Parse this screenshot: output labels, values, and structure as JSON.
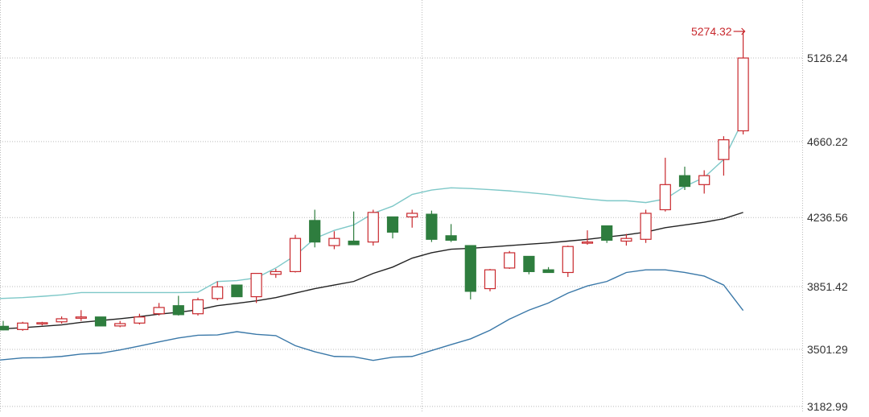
{
  "chart_data": {
    "type": "candlestick",
    "title": "",
    "xlabel": "",
    "ylabel": "",
    "y_ticks": [
      "5126.24",
      "4660.22",
      "4236.56",
      "3851.42",
      "3501.29",
      "3182.99"
    ],
    "y_tick_values": [
      5126.24,
      4660.22,
      4236.56,
      3851.42,
      3501.29,
      3182.99
    ],
    "grid": true,
    "colors": {
      "up": "#c8282d",
      "down": "#2e7d3e",
      "middle_band": "#222222",
      "upper_band": "#7ec8c8",
      "lower_band": "#3a78a8",
      "grid": "#bbbbbb"
    },
    "candles": [
      {
        "o": 3630,
        "h": 3660,
        "l": 3608,
        "c": 3610
      },
      {
        "o": 3612,
        "h": 3655,
        "l": 3605,
        "c": 3648
      },
      {
        "o": 3648,
        "h": 3655,
        "l": 3635,
        "c": 3650
      },
      {
        "o": 3655,
        "h": 3685,
        "l": 3645,
        "c": 3672
      },
      {
        "o": 3675,
        "h": 3720,
        "l": 3660,
        "c": 3682
      },
      {
        "o": 3682,
        "h": 3682,
        "l": 3630,
        "c": 3632
      },
      {
        "o": 3632,
        "h": 3660,
        "l": 3625,
        "c": 3645
      },
      {
        "o": 3648,
        "h": 3700,
        "l": 3640,
        "c": 3682
      },
      {
        "o": 3700,
        "h": 3760,
        "l": 3690,
        "c": 3735
      },
      {
        "o": 3745,
        "h": 3800,
        "l": 3690,
        "c": 3695
      },
      {
        "o": 3700,
        "h": 3790,
        "l": 3690,
        "c": 3778
      },
      {
        "o": 3785,
        "h": 3880,
        "l": 3775,
        "c": 3850
      },
      {
        "o": 3860,
        "h": 3860,
        "l": 3795,
        "c": 3795
      },
      {
        "o": 3795,
        "h": 3920,
        "l": 3760,
        "c": 3925
      },
      {
        "o": 3920,
        "h": 3950,
        "l": 3900,
        "c": 3935
      },
      {
        "o": 3935,
        "h": 4140,
        "l": 3930,
        "c": 4120
      },
      {
        "o": 4220,
        "h": 4280,
        "l": 4070,
        "c": 4100
      },
      {
        "o": 4080,
        "h": 4160,
        "l": 4060,
        "c": 4120
      },
      {
        "o": 4105,
        "h": 4270,
        "l": 4090,
        "c": 4085
      },
      {
        "o": 4100,
        "h": 4280,
        "l": 4080,
        "c": 4265
      },
      {
        "o": 4240,
        "h": 4240,
        "l": 4120,
        "c": 4155
      },
      {
        "o": 4240,
        "h": 4280,
        "l": 4180,
        "c": 4260
      },
      {
        "o": 4255,
        "h": 4275,
        "l": 4100,
        "c": 4115
      },
      {
        "o": 4135,
        "h": 4200,
        "l": 4100,
        "c": 4110
      },
      {
        "o": 4080,
        "h": 4080,
        "l": 3780,
        "c": 3825
      },
      {
        "o": 3840,
        "h": 3950,
        "l": 3825,
        "c": 3945
      },
      {
        "o": 3955,
        "h": 4050,
        "l": 3950,
        "c": 4040
      },
      {
        "o": 4020,
        "h": 4020,
        "l": 3920,
        "c": 3935
      },
      {
        "o": 3945,
        "h": 3960,
        "l": 3930,
        "c": 3930
      },
      {
        "o": 3930,
        "h": 4080,
        "l": 3905,
        "c": 4075
      },
      {
        "o": 4095,
        "h": 4165,
        "l": 4085,
        "c": 4100
      },
      {
        "o": 4190,
        "h": 4190,
        "l": 4095,
        "c": 4110
      },
      {
        "o": 4105,
        "h": 4145,
        "l": 4080,
        "c": 4120
      },
      {
        "o": 4115,
        "h": 4280,
        "l": 4095,
        "c": 4260
      },
      {
        "o": 4280,
        "h": 4570,
        "l": 4270,
        "c": 4420
      },
      {
        "o": 4470,
        "h": 4520,
        "l": 4390,
        "c": 4410
      },
      {
        "o": 4420,
        "h": 4500,
        "l": 4370,
        "c": 4470
      },
      {
        "o": 4560,
        "h": 4690,
        "l": 4470,
        "c": 4670
      },
      {
        "o": 4720,
        "h": 5274.32,
        "l": 4700,
        "c": 5126
      }
    ],
    "middle_band": [
      3615,
      3622,
      3630,
      3638,
      3652,
      3662,
      3672,
      3684,
      3698,
      3708,
      3722,
      3745,
      3758,
      3772,
      3790,
      3815,
      3840,
      3860,
      3880,
      3925,
      3960,
      4010,
      4040,
      4060,
      4065,
      4072,
      4080,
      4088,
      4095,
      4105,
      4115,
      4128,
      4140,
      4155,
      4180,
      4195,
      4210,
      4230,
      4265
    ],
    "upper_band": [
      3785,
      3790,
      3797,
      3805,
      3818,
      3818,
      3818,
      3818,
      3818,
      3818,
      3820,
      3880,
      3885,
      3900,
      3955,
      4025,
      4120,
      4165,
      4195,
      4260,
      4300,
      4365,
      4390,
      4402,
      4398,
      4392,
      4385,
      4375,
      4365,
      4352,
      4340,
      4330,
      4330,
      4320,
      4340,
      4410,
      4460,
      4560,
      4780
    ],
    "lower_band": [
      3442,
      3454,
      3455,
      3462,
      3475,
      3480,
      3498,
      3520,
      3543,
      3565,
      3580,
      3582,
      3600,
      3585,
      3578,
      3522,
      3488,
      3462,
      3460,
      3440,
      3458,
      3462,
      3495,
      3528,
      3560,
      3608,
      3670,
      3720,
      3760,
      3815,
      3855,
      3880,
      3930,
      3945,
      3945,
      3930,
      3910,
      3860,
      3718
    ]
  },
  "annotations": {
    "max_label": "5274.32"
  }
}
